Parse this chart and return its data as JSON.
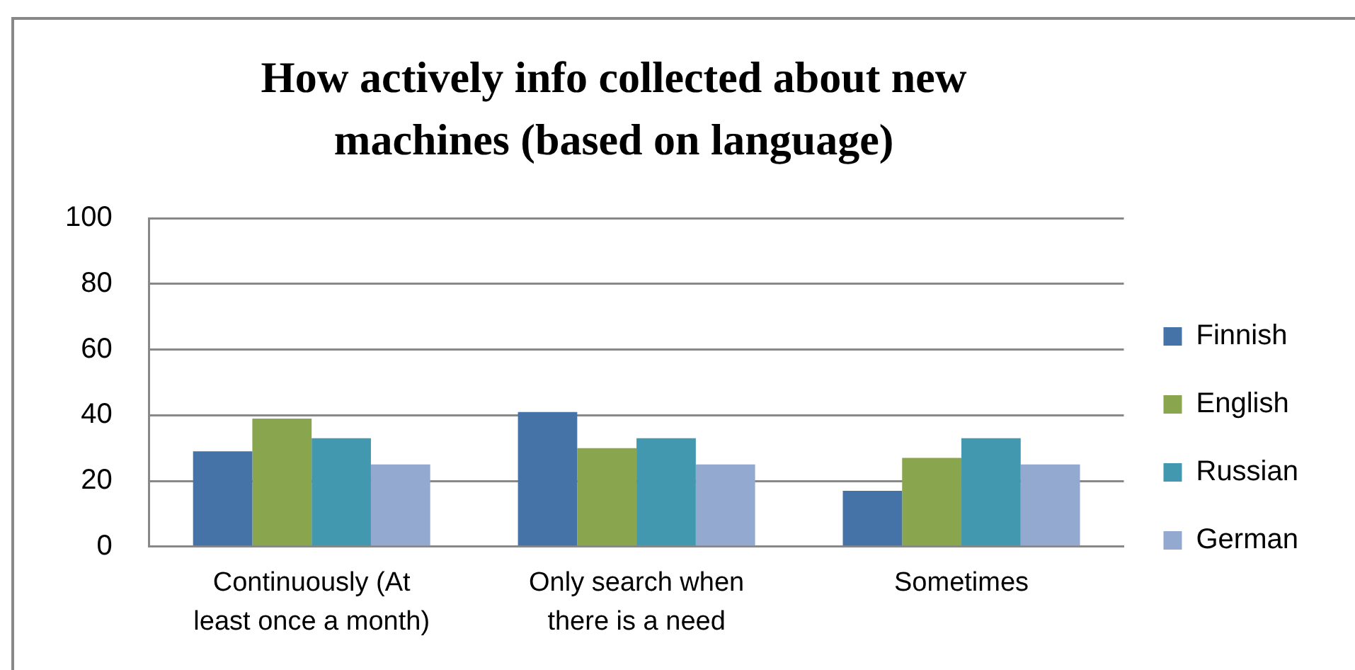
{
  "chart_data": {
    "type": "bar",
    "title": "How actively info collected about new machines (based on language)",
    "categories": [
      "Continuously (At least once a month)",
      "Only search when there is a need",
      "Sometimes"
    ],
    "series": [
      {
        "name": "Finnish",
        "color": "#4572a7",
        "values": [
          29,
          41,
          17
        ]
      },
      {
        "name": "English",
        "color": "#89a54e",
        "values": [
          39,
          30,
          27
        ]
      },
      {
        "name": "Russian",
        "color": "#4198af",
        "values": [
          33,
          33,
          33
        ]
      },
      {
        "name": "German",
        "color": "#93a9cf",
        "values": [
          25,
          25,
          25
        ]
      }
    ],
    "ylim": [
      0,
      100
    ],
    "yticks": [
      0,
      20,
      40,
      60,
      80,
      100
    ],
    "grid": "y",
    "legend": "right"
  }
}
